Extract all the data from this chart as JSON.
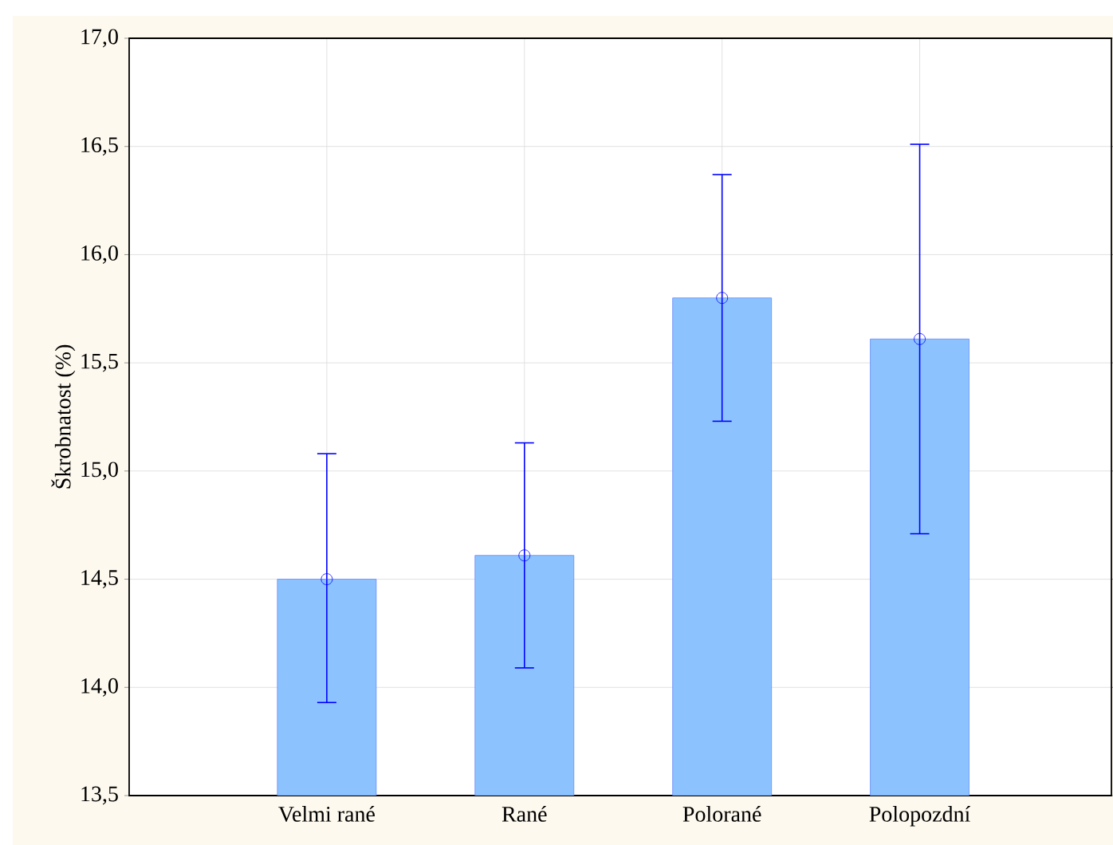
{
  "chart_data": {
    "type": "bar",
    "ylabel": "Škrobnatost (%)",
    "categories": [
      "Velmi rané",
      "Rané",
      "Polorané",
      "Polopozdní"
    ],
    "series": [
      {
        "color": "#8cc3ff",
        "values": [
          14.5,
          14.61,
          15.8,
          15.61
        ]
      },
      {
        "type": "scatter",
        "color": "#0000ff",
        "x": [
          "Velmi rané",
          "Rané",
          "Polorané",
          "Polopozdní"
        ],
        "values": [
          14.5,
          14.61,
          15.8,
          15.61
        ],
        "errors": [
          [
            13.93,
            15.08
          ],
          [
            14.09,
            15.13
          ],
          [
            15.23,
            16.37
          ],
          [
            14.71,
            16.51
          ]
        ]
      }
    ],
    "marker": "circle",
    "ylim": [
      13.5,
      17.0
    ],
    "yticks": [
      {
        "value": 13.5,
        "label": "13,5"
      },
      {
        "value": 14.0,
        "label": "14,0"
      },
      {
        "value": 14.5,
        "label": "14,5"
      },
      {
        "value": 15.0,
        "label": "15,0"
      },
      {
        "value": 15.5,
        "label": "15,5"
      },
      {
        "value": 16.0,
        "label": "16,0"
      },
      {
        "value": 16.5,
        "label": "16,5"
      },
      {
        "value": 17.0,
        "label": "17,0"
      }
    ],
    "grid": true
  }
}
